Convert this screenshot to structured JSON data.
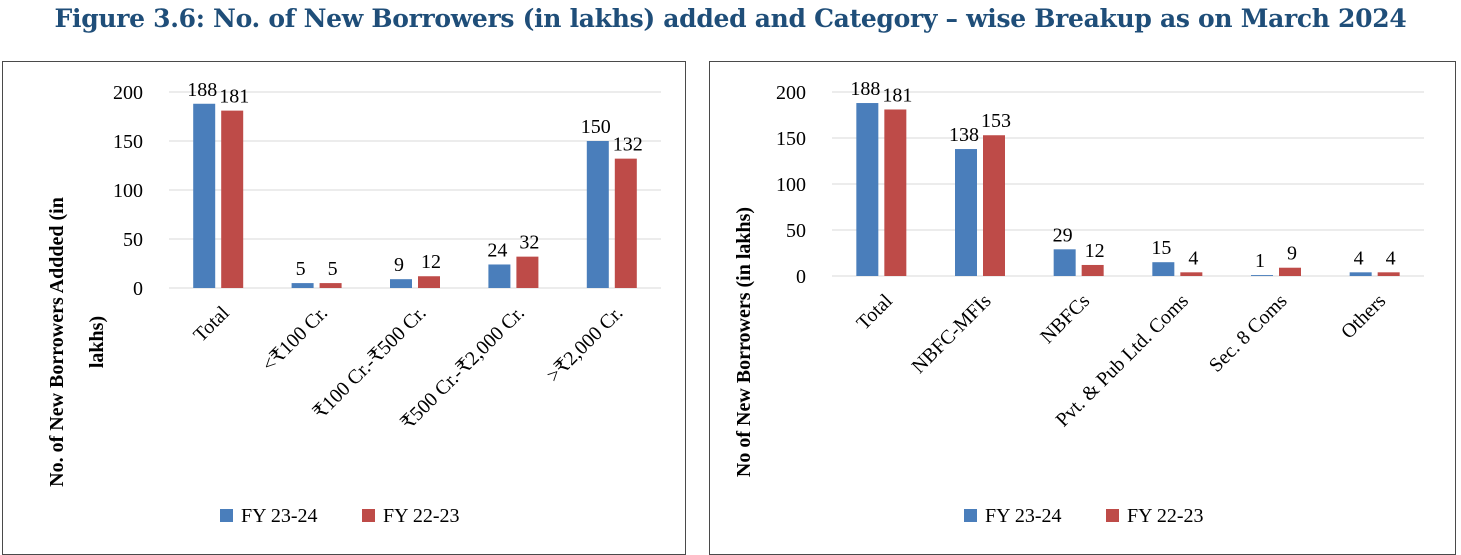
{
  "figure_title": "Figure 3.6: No. of New Borrowers (in lakhs) added and Category – wise Breakup as on March 2024",
  "colors": {
    "series1": "#4a7ebb",
    "series2": "#be4b48",
    "grid": "#d9d9d9",
    "title": "#1f4e79"
  },
  "chart_data": [
    {
      "type": "bar",
      "title": "",
      "xlabel": "",
      "ylabel": "No. of New Borrowers Addded (in lakhs)",
      "ylim": [
        0,
        200
      ],
      "yticks": [
        0,
        50,
        100,
        150,
        200
      ],
      "grid": true,
      "legend": "bottom",
      "categories": [
        "Total",
        "<₹100 Cr.",
        "₹100 Cr.-₹500 Cr.",
        "₹500 Cr.-₹2,000 Cr.",
        ">₹2,000 Cr."
      ],
      "series": [
        {
          "name": "FY 23-24",
          "values": [
            188,
            5,
            9,
            24,
            150
          ]
        },
        {
          "name": "FY 22-23",
          "values": [
            181,
            5,
            12,
            32,
            132
          ]
        }
      ]
    },
    {
      "type": "bar",
      "title": "",
      "xlabel": "",
      "ylabel": "No of New Borrowers (in lakhs)",
      "ylim": [
        0,
        200
      ],
      "yticks": [
        0,
        50,
        100,
        150,
        200
      ],
      "grid": true,
      "legend": "bottom",
      "categories": [
        "Total",
        "NBFC-MFIs",
        "NBFCs",
        "Pvt. & Pub Ltd. Coms",
        "Sec. 8 Coms",
        "Others"
      ],
      "series": [
        {
          "name": "FY 23-24",
          "values": [
            188,
            138,
            29,
            15,
            1,
            4
          ]
        },
        {
          "name": "FY 22-23",
          "values": [
            181,
            153,
            12,
            4,
            9,
            4
          ]
        }
      ]
    }
  ]
}
